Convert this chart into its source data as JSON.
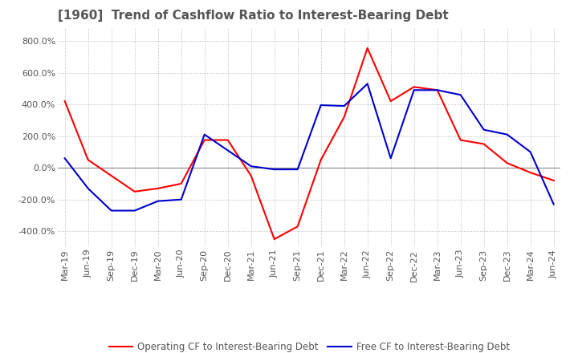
{
  "title": "[1960]  Trend of Cashflow Ratio to Interest-Bearing Debt",
  "title_color": "#555555",
  "background_color": "#ffffff",
  "plot_background_color": "#ffffff",
  "grid_color": "#aaaaaa",
  "xlabel": "",
  "ylabel": "",
  "ylim": [
    -500,
    880
  ],
  "yticks": [
    -400,
    -200,
    0,
    200,
    400,
    600,
    800
  ],
  "x_labels": [
    "Mar-19",
    "Jun-19",
    "Sep-19",
    "Dec-19",
    "Mar-20",
    "Jun-20",
    "Sep-20",
    "Dec-20",
    "Mar-21",
    "Jun-21",
    "Sep-21",
    "Dec-21",
    "Mar-22",
    "Jun-22",
    "Sep-22",
    "Dec-22",
    "Mar-23",
    "Jun-23",
    "Sep-23",
    "Dec-23",
    "Mar-24",
    "Jun-24"
  ],
  "operating_cf": [
    420,
    50,
    -50,
    -150,
    -130,
    -100,
    175,
    175,
    -50,
    -450,
    -370,
    50,
    320,
    755,
    420,
    510,
    490,
    175,
    150,
    30,
    -30,
    -80
  ],
  "free_cf": [
    60,
    -130,
    -270,
    -270,
    -210,
    -200,
    210,
    110,
    10,
    -10,
    -10,
    395,
    390,
    530,
    60,
    490,
    490,
    460,
    240,
    210,
    100,
    -230
  ],
  "operating_cf_color": "#ff0000",
  "free_cf_color": "#0000cc",
  "line_width": 1.5,
  "legend_operating": "Operating CF to Interest-Bearing Debt",
  "legend_free": "Free CF to Interest-Bearing Debt",
  "tick_label_fontsize": 8,
  "title_fontsize": 11,
  "legend_fontsize": 8.5
}
